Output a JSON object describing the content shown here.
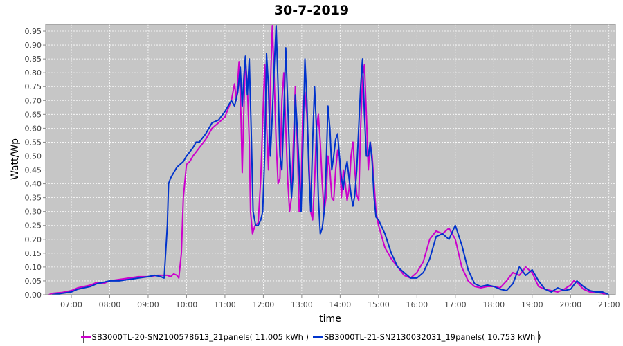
{
  "chart_data": {
    "type": "line",
    "title": "30-7-2019",
    "xlabel": "time",
    "ylabel": "Watt/Wp",
    "xlim": [
      "06:20",
      "21:10"
    ],
    "ylim": [
      0,
      0.975
    ],
    "x_ticks": [
      "07:00",
      "08:00",
      "09:00",
      "10:00",
      "11:00",
      "12:00",
      "13:00",
      "14:00",
      "15:00",
      "16:00",
      "17:00",
      "18:00",
      "19:00",
      "20:00",
      "21:00"
    ],
    "y_ticks": [
      "0.00",
      "0.05",
      "0.10",
      "0.15",
      "0.20",
      "0.25",
      "0.30",
      "0.35",
      "0.40",
      "0.45",
      "0.50",
      "0.55",
      "0.60",
      "0.65",
      "0.70",
      "0.75",
      "0.80",
      "0.85",
      "0.90",
      "0.95"
    ],
    "grid": true,
    "legend_position": "bottom",
    "series": [
      {
        "name": "SB3000TL-20-SN2100578613_21panels( 11.005 kWh )",
        "color": "#cc00cc",
        "points": [
          [
            "06:25",
            0.0
          ],
          [
            "06:30",
            0.005
          ],
          [
            "06:45",
            0.008
          ],
          [
            "07:00",
            0.015
          ],
          [
            "07:10",
            0.025
          ],
          [
            "07:20",
            0.03
          ],
          [
            "07:30",
            0.035
          ],
          [
            "07:40",
            0.045
          ],
          [
            "07:50",
            0.04
          ],
          [
            "08:00",
            0.05
          ],
          [
            "08:15",
            0.055
          ],
          [
            "08:30",
            0.06
          ],
          [
            "08:45",
            0.065
          ],
          [
            "09:00",
            0.065
          ],
          [
            "09:15",
            0.07
          ],
          [
            "09:30",
            0.07
          ],
          [
            "09:35",
            0.065
          ],
          [
            "09:40",
            0.075
          ],
          [
            "09:45",
            0.07
          ],
          [
            "09:48",
            0.06
          ],
          [
            "09:52",
            0.15
          ],
          [
            "09:55",
            0.35
          ],
          [
            "10:00",
            0.47
          ],
          [
            "10:05",
            0.48
          ],
          [
            "10:10",
            0.5
          ],
          [
            "10:20",
            0.53
          ],
          [
            "10:30",
            0.56
          ],
          [
            "10:40",
            0.6
          ],
          [
            "10:50",
            0.62
          ],
          [
            "11:00",
            0.64
          ],
          [
            "11:05",
            0.67
          ],
          [
            "11:10",
            0.7
          ],
          [
            "11:15",
            0.76
          ],
          [
            "11:18",
            0.7
          ],
          [
            "11:22",
            0.84
          ],
          [
            "11:25",
            0.65
          ],
          [
            "11:27",
            0.44
          ],
          [
            "11:29",
            0.62
          ],
          [
            "11:32",
            0.85
          ],
          [
            "11:35",
            0.75
          ],
          [
            "11:38",
            0.55
          ],
          [
            "11:40",
            0.3
          ],
          [
            "11:43",
            0.22
          ],
          [
            "11:47",
            0.25
          ],
          [
            "11:52",
            0.26
          ],
          [
            "11:56",
            0.42
          ],
          [
            "11:59",
            0.62
          ],
          [
            "12:02",
            0.83
          ],
          [
            "12:05",
            0.62
          ],
          [
            "12:08",
            0.45
          ],
          [
            "12:11",
            0.75
          ],
          [
            "12:14",
            0.97
          ],
          [
            "12:17",
            0.78
          ],
          [
            "12:20",
            0.55
          ],
          [
            "12:23",
            0.4
          ],
          [
            "12:26",
            0.42
          ],
          [
            "12:29",
            0.7
          ],
          [
            "12:32",
            0.8
          ],
          [
            "12:35",
            0.6
          ],
          [
            "12:38",
            0.42
          ],
          [
            "12:41",
            0.3
          ],
          [
            "12:44",
            0.35
          ],
          [
            "12:47",
            0.55
          ],
          [
            "12:50",
            0.75
          ],
          [
            "12:53",
            0.55
          ],
          [
            "12:56",
            0.3
          ],
          [
            "12:59",
            0.38
          ],
          [
            "13:02",
            0.7
          ],
          [
            "13:05",
            0.73
          ],
          [
            "13:08",
            0.65
          ],
          [
            "13:11",
            0.5
          ],
          [
            "13:14",
            0.3
          ],
          [
            "13:17",
            0.27
          ],
          [
            "13:20",
            0.4
          ],
          [
            "13:23",
            0.6
          ],
          [
            "13:26",
            0.65
          ],
          [
            "13:29",
            0.55
          ],
          [
            "13:32",
            0.4
          ],
          [
            "13:35",
            0.3
          ],
          [
            "13:38",
            0.35
          ],
          [
            "13:41",
            0.5
          ],
          [
            "13:44",
            0.45
          ],
          [
            "13:47",
            0.35
          ],
          [
            "13:50",
            0.34
          ],
          [
            "13:53",
            0.45
          ],
          [
            "13:56",
            0.52
          ],
          [
            "13:59",
            0.5
          ],
          [
            "14:02",
            0.35
          ],
          [
            "14:05",
            0.45
          ],
          [
            "14:08",
            0.4
          ],
          [
            "14:11",
            0.34
          ],
          [
            "14:14",
            0.38
          ],
          [
            "14:17",
            0.5
          ],
          [
            "14:20",
            0.55
          ],
          [
            "14:23",
            0.45
          ],
          [
            "14:26",
            0.36
          ],
          [
            "14:29",
            0.34
          ],
          [
            "14:32",
            0.6
          ],
          [
            "14:35",
            0.78
          ],
          [
            "14:38",
            0.83
          ],
          [
            "14:41",
            0.65
          ],
          [
            "14:44",
            0.45
          ],
          [
            "14:47",
            0.55
          ],
          [
            "14:50",
            0.5
          ],
          [
            "14:53",
            0.4
          ],
          [
            "14:56",
            0.3
          ],
          [
            "15:00",
            0.25
          ],
          [
            "15:10",
            0.17
          ],
          [
            "15:20",
            0.13
          ],
          [
            "15:30",
            0.1
          ],
          [
            "15:40",
            0.07
          ],
          [
            "15:50",
            0.06
          ],
          [
            "16:00",
            0.08
          ],
          [
            "16:10",
            0.12
          ],
          [
            "16:20",
            0.2
          ],
          [
            "16:30",
            0.23
          ],
          [
            "16:40",
            0.22
          ],
          [
            "16:50",
            0.24
          ],
          [
            "17:00",
            0.2
          ],
          [
            "17:10",
            0.1
          ],
          [
            "17:20",
            0.05
          ],
          [
            "17:30",
            0.03
          ],
          [
            "17:40",
            0.025
          ],
          [
            "17:50",
            0.03
          ],
          [
            "18:00",
            0.03
          ],
          [
            "18:10",
            0.025
          ],
          [
            "18:20",
            0.05
          ],
          [
            "18:30",
            0.08
          ],
          [
            "18:40",
            0.07
          ],
          [
            "18:50",
            0.1
          ],
          [
            "19:00",
            0.08
          ],
          [
            "19:10",
            0.03
          ],
          [
            "19:20",
            0.02
          ],
          [
            "19:30",
            0.015
          ],
          [
            "19:40",
            0.01
          ],
          [
            "19:50",
            0.02
          ],
          [
            "20:00",
            0.035
          ],
          [
            "20:05",
            0.05
          ],
          [
            "20:10",
            0.045
          ],
          [
            "20:20",
            0.02
          ],
          [
            "20:30",
            0.01
          ],
          [
            "20:40",
            0.01
          ],
          [
            "20:50",
            0.005
          ],
          [
            "20:55",
            0.0
          ]
        ]
      },
      {
        "name": "SB3000TL-21-SN2130032031_19panels( 10.753 kWh )",
        "color": "#0033cc",
        "points": [
          [
            "06:30",
            0.0
          ],
          [
            "06:45",
            0.005
          ],
          [
            "07:00",
            0.01
          ],
          [
            "07:10",
            0.02
          ],
          [
            "07:20",
            0.025
          ],
          [
            "07:30",
            0.03
          ],
          [
            "07:40",
            0.04
          ],
          [
            "07:50",
            0.045
          ],
          [
            "08:00",
            0.05
          ],
          [
            "08:15",
            0.05
          ],
          [
            "08:30",
            0.055
          ],
          [
            "08:45",
            0.06
          ],
          [
            "09:00",
            0.065
          ],
          [
            "09:10",
            0.07
          ],
          [
            "09:20",
            0.065
          ],
          [
            "09:25",
            0.06
          ],
          [
            "09:30",
            0.25
          ],
          [
            "09:32",
            0.4
          ],
          [
            "09:35",
            0.42
          ],
          [
            "09:40",
            0.44
          ],
          [
            "09:45",
            0.46
          ],
          [
            "09:50",
            0.47
          ],
          [
            "09:55",
            0.48
          ],
          [
            "10:00",
            0.5
          ],
          [
            "10:10",
            0.53
          ],
          [
            "10:15",
            0.55
          ],
          [
            "10:20",
            0.55
          ],
          [
            "10:30",
            0.58
          ],
          [
            "10:40",
            0.62
          ],
          [
            "10:50",
            0.63
          ],
          [
            "11:00",
            0.66
          ],
          [
            "11:05",
            0.68
          ],
          [
            "11:10",
            0.7
          ],
          [
            "11:15",
            0.68
          ],
          [
            "11:20",
            0.73
          ],
          [
            "11:24",
            0.82
          ],
          [
            "11:27",
            0.68
          ],
          [
            "11:30",
            0.8
          ],
          [
            "11:32",
            0.86
          ],
          [
            "11:35",
            0.72
          ],
          [
            "11:38",
            0.85
          ],
          [
            "11:41",
            0.6
          ],
          [
            "11:44",
            0.3
          ],
          [
            "11:48",
            0.25
          ],
          [
            "11:52",
            0.25
          ],
          [
            "11:56",
            0.27
          ],
          [
            "11:59",
            0.3
          ],
          [
            "12:02",
            0.5
          ],
          [
            "12:05",
            0.87
          ],
          [
            "12:08",
            0.75
          ],
          [
            "12:11",
            0.5
          ],
          [
            "12:14",
            0.65
          ],
          [
            "12:17",
            0.82
          ],
          [
            "12:20",
            0.97
          ],
          [
            "12:23",
            0.75
          ],
          [
            "12:26",
            0.5
          ],
          [
            "12:29",
            0.45
          ],
          [
            "12:32",
            0.65
          ],
          [
            "12:35",
            0.89
          ],
          [
            "12:38",
            0.7
          ],
          [
            "12:41",
            0.5
          ],
          [
            "12:44",
            0.35
          ],
          [
            "12:47",
            0.45
          ],
          [
            "12:50",
            0.72
          ],
          [
            "12:53",
            0.6
          ],
          [
            "12:56",
            0.45
          ],
          [
            "12:59",
            0.3
          ],
          [
            "13:02",
            0.55
          ],
          [
            "13:05",
            0.85
          ],
          [
            "13:08",
            0.7
          ],
          [
            "13:11",
            0.45
          ],
          [
            "13:14",
            0.3
          ],
          [
            "13:17",
            0.55
          ],
          [
            "13:20",
            0.75
          ],
          [
            "13:23",
            0.6
          ],
          [
            "13:26",
            0.35
          ],
          [
            "13:29",
            0.22
          ],
          [
            "13:32",
            0.24
          ],
          [
            "13:35",
            0.3
          ],
          [
            "13:38",
            0.45
          ],
          [
            "13:41",
            0.68
          ],
          [
            "13:44",
            0.6
          ],
          [
            "13:47",
            0.45
          ],
          [
            "13:50",
            0.5
          ],
          [
            "13:53",
            0.56
          ],
          [
            "13:56",
            0.58
          ],
          [
            "13:59",
            0.5
          ],
          [
            "14:02",
            0.42
          ],
          [
            "14:05",
            0.38
          ],
          [
            "14:08",
            0.45
          ],
          [
            "14:11",
            0.48
          ],
          [
            "14:14",
            0.42
          ],
          [
            "14:17",
            0.36
          ],
          [
            "14:20",
            0.32
          ],
          [
            "14:23",
            0.36
          ],
          [
            "14:26",
            0.45
          ],
          [
            "14:29",
            0.6
          ],
          [
            "14:32",
            0.75
          ],
          [
            "14:35",
            0.85
          ],
          [
            "14:38",
            0.65
          ],
          [
            "14:41",
            0.5
          ],
          [
            "14:44",
            0.5
          ],
          [
            "14:47",
            0.55
          ],
          [
            "14:50",
            0.48
          ],
          [
            "14:53",
            0.35
          ],
          [
            "14:56",
            0.28
          ],
          [
            "15:00",
            0.27
          ],
          [
            "15:10",
            0.22
          ],
          [
            "15:20",
            0.15
          ],
          [
            "15:30",
            0.1
          ],
          [
            "15:40",
            0.08
          ],
          [
            "15:50",
            0.06
          ],
          [
            "16:00",
            0.06
          ],
          [
            "16:10",
            0.08
          ],
          [
            "16:20",
            0.13
          ],
          [
            "16:30",
            0.21
          ],
          [
            "16:40",
            0.22
          ],
          [
            "16:50",
            0.2
          ],
          [
            "17:00",
            0.25
          ],
          [
            "17:10",
            0.18
          ],
          [
            "17:20",
            0.09
          ],
          [
            "17:30",
            0.04
          ],
          [
            "17:40",
            0.03
          ],
          [
            "17:50",
            0.035
          ],
          [
            "18:00",
            0.03
          ],
          [
            "18:10",
            0.02
          ],
          [
            "18:20",
            0.015
          ],
          [
            "18:30",
            0.04
          ],
          [
            "18:40",
            0.1
          ],
          [
            "18:50",
            0.07
          ],
          [
            "19:00",
            0.09
          ],
          [
            "19:10",
            0.05
          ],
          [
            "19:20",
            0.02
          ],
          [
            "19:30",
            0.01
          ],
          [
            "19:40",
            0.025
          ],
          [
            "19:50",
            0.015
          ],
          [
            "20:00",
            0.02
          ],
          [
            "20:10",
            0.05
          ],
          [
            "20:20",
            0.03
          ],
          [
            "20:30",
            0.015
          ],
          [
            "20:40",
            0.01
          ],
          [
            "20:50",
            0.01
          ],
          [
            "21:00",
            0.0
          ]
        ]
      }
    ]
  }
}
